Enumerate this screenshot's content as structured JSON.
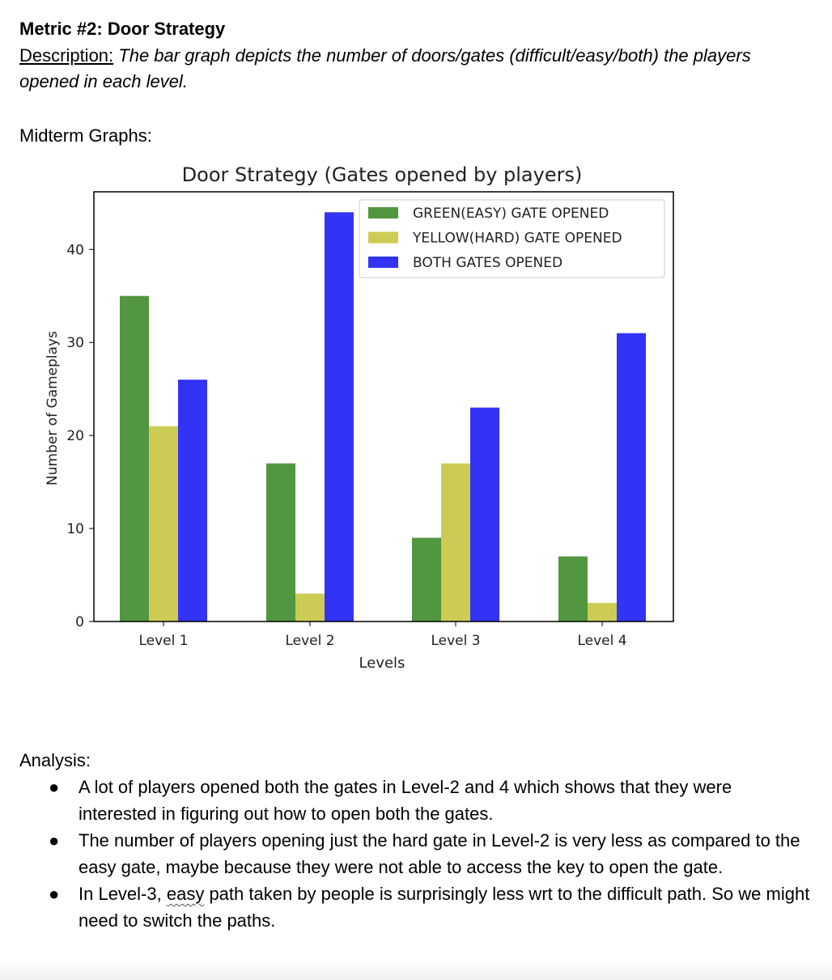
{
  "document": {
    "metric_title": "Metric #2: Door Strategy",
    "description_label": "Description:",
    "description_text": " The bar graph depicts the number of doors/gates (difficult/easy/both) the players opened in each level.",
    "midterm_label": "Midterm Graphs:",
    "analysis_label": "Analysis:",
    "analysis_items": [
      {
        "text": "A lot of players opened both the gates in Level-2 and 4 which shows that they were interested in figuring out how to open both the gates."
      },
      {
        "text": "The number of players opening just the hard gate in Level-2 is very less as compared to the easy gate, maybe because they were not able to access the key to open the gate."
      },
      {
        "prefix": "In Level-3, ",
        "emph": "easy",
        "suffix": " path taken by people is surprisingly less wrt to the difficult path. So we might need to switch the paths."
      }
    ],
    "bullet_glyph": "●"
  },
  "chart_data": {
    "type": "bar",
    "title": "Door Strategy (Gates opened by players)",
    "xlabel": "Levels",
    "ylabel": "Number of Gameplays",
    "categories": [
      "Level 1",
      "Level 2",
      "Level 3",
      "Level 4"
    ],
    "series": [
      {
        "name": "GREEN(EASY) GATE OPENED",
        "color": "#52963f",
        "values": [
          35,
          17,
          9,
          7
        ]
      },
      {
        "name": "YELLOW(HARD) GATE OPENED",
        "color": "#cccc55",
        "values": [
          21,
          3,
          17,
          2
        ]
      },
      {
        "name": "BOTH GATES OPENED",
        "color": "#3333f5",
        "values": [
          26,
          44,
          23,
          31
        ]
      }
    ],
    "ylim": [
      0,
      46.2
    ],
    "yticks": [
      0,
      10,
      20,
      30,
      40
    ],
    "legend": "top-right",
    "grid": false
  }
}
